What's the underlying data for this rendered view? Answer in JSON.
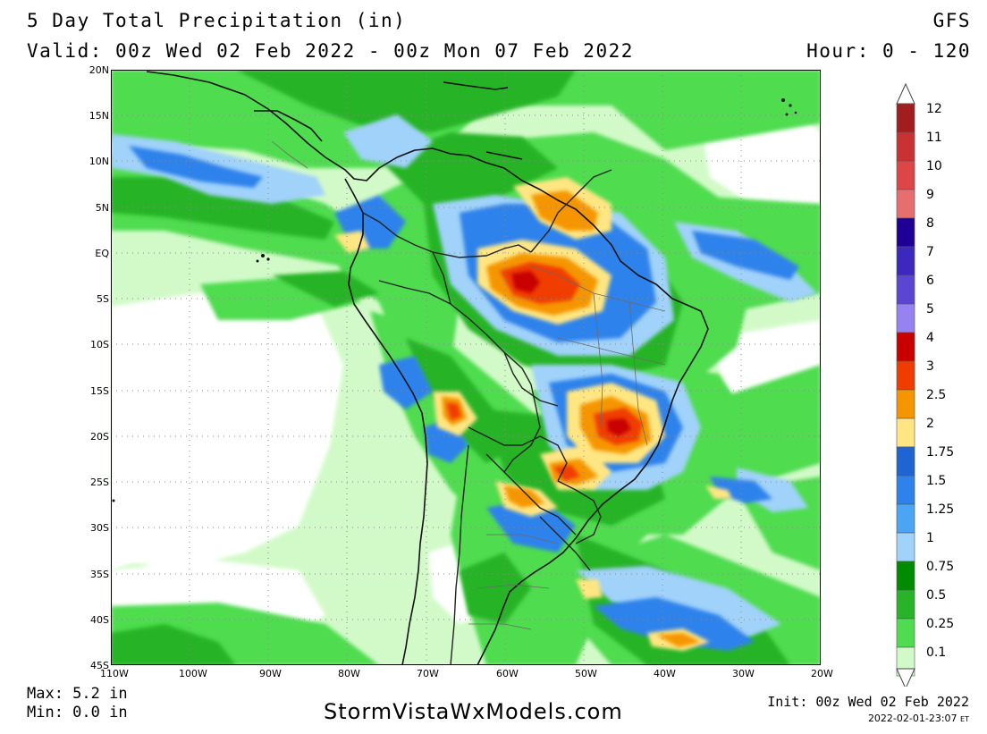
{
  "header": {
    "title": "5 Day Total Precipitation (in)",
    "model": "GFS",
    "valid": "Valid: 00z Wed 02 Feb 2022 - 00z Mon 07 Feb 2022",
    "hour": "Hour: 0 - 120"
  },
  "map": {
    "region": "South America",
    "lon_labels": [
      "110W",
      "100W",
      "90W",
      "80W",
      "70W",
      "60W",
      "50W",
      "40W",
      "30W",
      "20W"
    ],
    "lat_labels": [
      "20N",
      "15N",
      "10N",
      "5N",
      "EQ",
      "5S",
      "10S",
      "15S",
      "20S",
      "25S",
      "30S",
      "35S",
      "40S",
      "45S"
    ]
  },
  "colorbar": {
    "labels": [
      "12",
      "11",
      "10",
      "9",
      "8",
      "7",
      "6",
      "5",
      "4",
      "3",
      "2.5",
      "2",
      "1.75",
      "1.5",
      "1.25",
      "1",
      "0.75",
      "0.5",
      "0.25",
      "0.1"
    ],
    "colors": [
      "#a01e1e",
      "#c83232",
      "#dc4646",
      "#e66e6e",
      "#1e0096",
      "#3c28be",
      "#5a46d2",
      "#9682f0",
      "#c80000",
      "#f03c00",
      "#f59600",
      "#ffe682",
      "#1e64d2",
      "#2d82eb",
      "#4ba5f5",
      "#a0d2fa",
      "#008c00",
      "#28b428",
      "#50dc50",
      "#d2fac8"
    ]
  },
  "footer": {
    "max": "Max: 5.2 in",
    "min": "Min: 0.0 in",
    "site": "StormVistaWxModels.com",
    "init": "Init: 00z Wed 02 Feb 2022",
    "generated": "2022-02-01-23:07",
    "tz": "ET"
  }
}
